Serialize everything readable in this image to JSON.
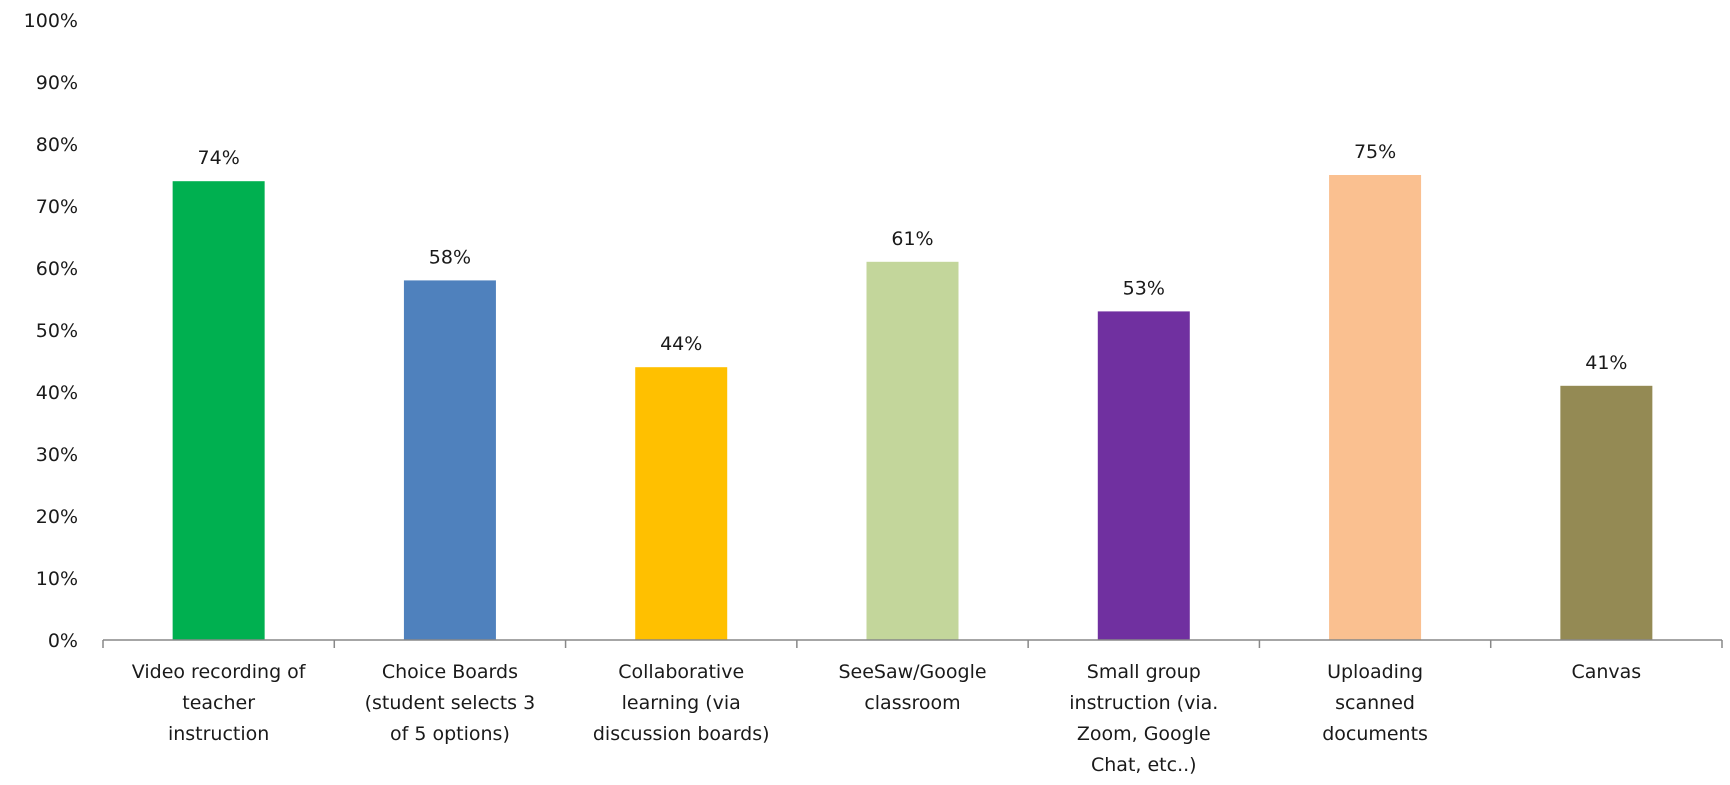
{
  "chart_data": {
    "type": "bar",
    "title": "",
    "xlabel": "",
    "ylabel": "",
    "ylim": [
      0,
      100
    ],
    "y_ticks": [
      "0%",
      "10%",
      "20%",
      "30%",
      "40%",
      "50%",
      "60%",
      "70%",
      "80%",
      "90%",
      "100%"
    ],
    "grid": false,
    "legend": "none",
    "categories": [
      [
        "Video recording of",
        "teacher",
        "instruction"
      ],
      [
        "Choice Boards",
        "(student selects 3",
        "of 5 options)"
      ],
      [
        "Collaborative",
        "learning (via",
        "discussion boards)"
      ],
      [
        "SeeSaw/Google",
        "classroom"
      ],
      [
        "Small group",
        "instruction (via.",
        "Zoom, Google",
        "Chat, etc..)"
      ],
      [
        "Uploading",
        "scanned",
        "documents"
      ],
      [
        "Canvas"
      ]
    ],
    "values": [
      74,
      58,
      44,
      61,
      53,
      75,
      41
    ],
    "data_labels": [
      "74%",
      "58%",
      "44%",
      "61%",
      "53%",
      "75%",
      "41%"
    ],
    "colors": [
      "#00b050",
      "#4f81bd",
      "#ffc000",
      "#c3d69b",
      "#7030a0",
      "#fac090",
      "#948a54"
    ]
  }
}
